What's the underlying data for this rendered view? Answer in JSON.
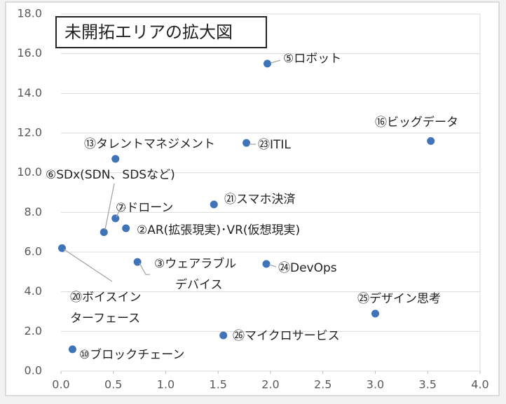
{
  "chart_data": {
    "type": "scatter",
    "title": "未開拓エリアの拡大図",
    "color": "#3f74b8",
    "grid": true,
    "xlim": [
      0,
      4
    ],
    "ylim": [
      0,
      18
    ],
    "xticks": [
      {
        "value": 0,
        "label": "0.0"
      },
      {
        "value": 0.5,
        "label": "0.5"
      },
      {
        "value": 1,
        "label": "1.0"
      },
      {
        "value": 1.5,
        "label": "1.5"
      },
      {
        "value": 2,
        "label": "2.0"
      },
      {
        "value": 2.5,
        "label": "2.5"
      },
      {
        "value": 3,
        "label": "3.0"
      },
      {
        "value": 3.5,
        "label": "3.5"
      },
      {
        "value": 4,
        "label": "4.0"
      }
    ],
    "yticks": [
      {
        "value": 0,
        "label": "0.0"
      },
      {
        "value": 2,
        "label": "2.0"
      },
      {
        "value": 4,
        "label": "4.0"
      },
      {
        "value": 6,
        "label": "6.0"
      },
      {
        "value": 8,
        "label": "8.0"
      },
      {
        "value": 10,
        "label": "10.0"
      },
      {
        "value": 12,
        "label": "12.0"
      },
      {
        "value": 14,
        "label": "14.0"
      },
      {
        "value": 16,
        "label": "16.0"
      },
      {
        "value": 18,
        "label": "18.0"
      }
    ],
    "labels": [
      "⑤ロボット",
      "⑯ビッグデータ",
      "⑬タレントマネジメント",
      "㉓ITIL",
      "⑥SDx(SDN、SDSなど)",
      "⑦ドローン",
      "②AR(拡張現実)･VR(仮想現実)",
      "㉑スマホ決済",
      [
        "③ウェアラブル",
        "デバイス"
      ],
      "㉔DevOps",
      [
        "⑳ボイスイン",
        "ターフェース"
      ],
      "㉕デザイン思考",
      "㉖マイクロサービス",
      "⑩ブロックチェーン"
    ],
    "x": [
      1.97,
      3.53,
      0.52,
      1.77,
      0.41,
      0.52,
      0.62,
      1.46,
      0.73,
      1.96,
      0.01,
      3.0,
      1.55,
      0.11
    ],
    "values": [
      15.5,
      11.6,
      10.7,
      11.5,
      7.0,
      7.7,
      7.2,
      8.4,
      5.5,
      5.4,
      6.2,
      2.9,
      1.8,
      1.1
    ]
  }
}
